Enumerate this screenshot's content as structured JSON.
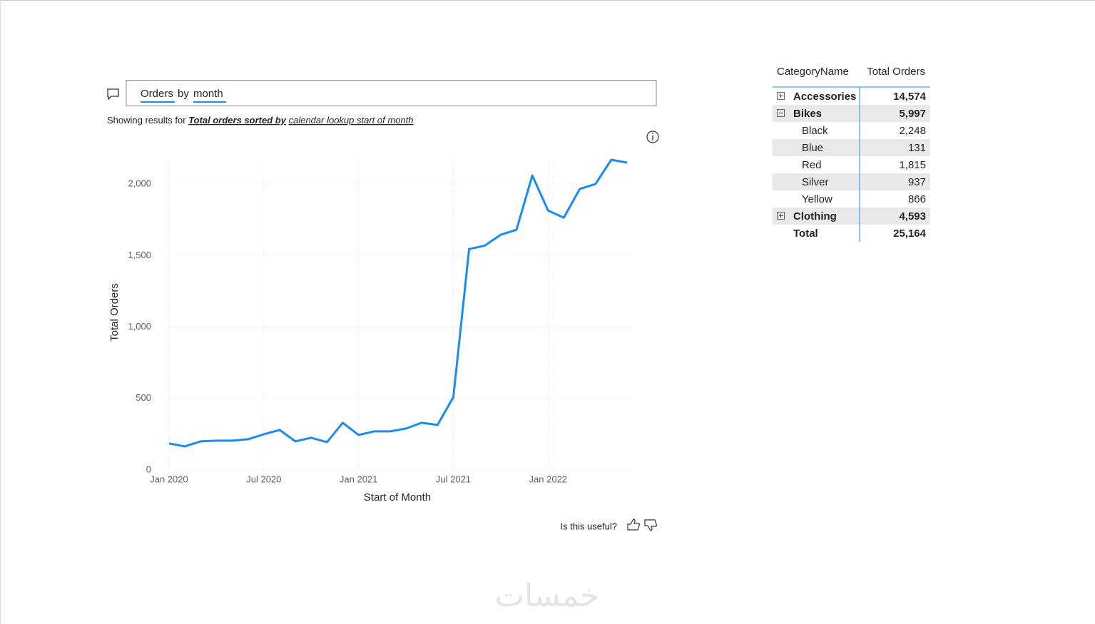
{
  "query": {
    "parts": [
      "Orders",
      "by",
      "month"
    ]
  },
  "showing_results": {
    "prefix": "Showing results for",
    "bold": "Total orders sorted by",
    "rest": "calendar lookup start of month"
  },
  "chart_data": {
    "type": "line",
    "x_label": "Start of Month",
    "y_label": "Total Orders",
    "x": [
      "2020-01",
      "2020-02",
      "2020-03",
      "2020-04",
      "2020-05",
      "2020-06",
      "2020-07",
      "2020-08",
      "2020-09",
      "2020-10",
      "2020-11",
      "2020-12",
      "2021-01",
      "2021-02",
      "2021-03",
      "2021-04",
      "2021-05",
      "2021-06",
      "2021-07",
      "2021-08",
      "2021-09",
      "2021-10",
      "2021-11",
      "2021-12",
      "2022-01",
      "2022-02",
      "2022-03",
      "2022-04",
      "2022-05",
      "2022-06"
    ],
    "series": [
      {
        "name": "Total Orders",
        "color": "#1a8cf0",
        "values": [
          185,
          165,
          200,
          205,
          205,
          215,
          250,
          280,
          200,
          225,
          195,
          330,
          245,
          270,
          270,
          290,
          330,
          315,
          510,
          1545,
          1570,
          1645,
          1680,
          2060,
          1815,
          1765,
          1965,
          2000,
          2170,
          2150
        ]
      }
    ],
    "xlim": [
      "2020-01",
      "2022-06"
    ],
    "xticks": [
      {
        "value": "2020-01",
        "label": "Jan 2020"
      },
      {
        "value": "2020-07",
        "label": "Jul 2020"
      },
      {
        "value": "2021-01",
        "label": "Jan 2021"
      },
      {
        "value": "2021-07",
        "label": "Jul 2021"
      },
      {
        "value": "2022-01",
        "label": "Jan 2022"
      }
    ],
    "ylim": [
      0,
      2190
    ],
    "yticks": [
      0,
      500,
      {
        "value": 1000,
        "label": "1,000"
      },
      {
        "value": 1500,
        "label": "1,500"
      },
      {
        "value": 2000,
        "label": "2,000"
      }
    ],
    "grid": true
  },
  "table": {
    "header": [
      "CategoryName",
      "Total Orders"
    ],
    "rows": [
      {
        "name": "Accessories",
        "value": "14,574",
        "expander": "plus",
        "bold": true
      },
      {
        "name": "Bikes",
        "value": "5,997",
        "expander": "minus",
        "bold": true
      },
      {
        "name": "Black",
        "value": "2,248",
        "expander": "",
        "bold": false
      },
      {
        "name": "Blue",
        "value": "131",
        "expander": "",
        "bold": false
      },
      {
        "name": "Red",
        "value": "1,815",
        "expander": "",
        "bold": false
      },
      {
        "name": "Silver",
        "value": "937",
        "expander": "",
        "bold": false
      },
      {
        "name": "Yellow",
        "value": "866",
        "expander": "",
        "bold": false
      },
      {
        "name": "Clothing",
        "value": "4,593",
        "expander": "plus",
        "bold": true
      },
      {
        "name": "Total",
        "value": "25,164",
        "expander": "",
        "bold": true
      }
    ]
  },
  "feedback": "Is this useful?",
  "watermark": "خمسات"
}
